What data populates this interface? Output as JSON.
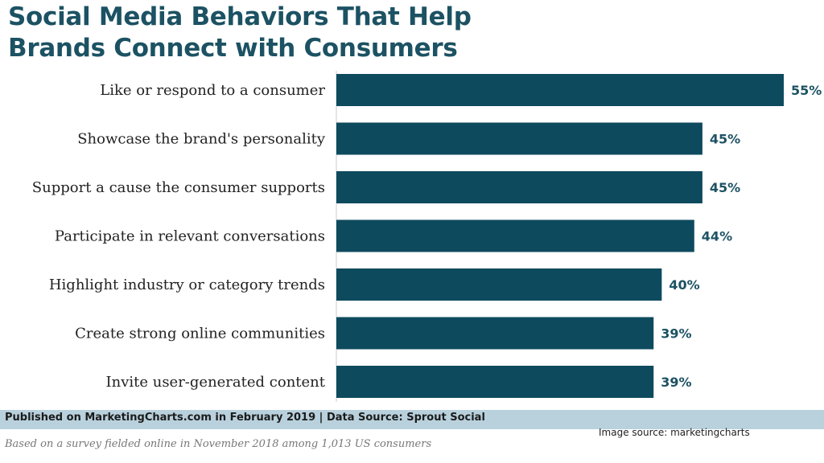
{
  "title_line1": "Social Media Behaviors That Help",
  "title_line2": "Brands Connect with Consumers",
  "chart_data": {
    "type": "bar",
    "orientation": "horizontal",
    "title": "Social Media Behaviors That Help Brands Connect with Consumers",
    "categories": [
      "Like or respond to a consumer",
      "Showcase the brand's personality",
      "Support a cause the consumer supports",
      "Participate in relevant conversations",
      "Highlight industry or category trends",
      "Create strong online communities",
      "Invite user-generated content"
    ],
    "values": [
      55,
      45,
      45,
      44,
      40,
      39,
      39
    ],
    "value_labels": [
      "55%",
      "45%",
      "45%",
      "44%",
      "40%",
      "39%",
      "39%"
    ],
    "unit": "%",
    "xlim": [
      0,
      55
    ],
    "bar_color": "#0e4a5e",
    "label_color": "#1c5263"
  },
  "footer": {
    "published": "Published on MarketingCharts.com in February 2019 | Data Source: Sprout Social",
    "note": "Based on a survey fielded online in November 2018 among 1,013 US consumers",
    "image_source": "Image source: marketingcharts"
  },
  "colors": {
    "title": "#1c5263",
    "footer_band": "#b9d1dd"
  }
}
